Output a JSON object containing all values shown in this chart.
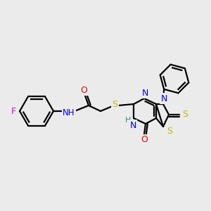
{
  "bg_color": "#ebebeb",
  "lw": 1.6,
  "atom_colors": {
    "N": "#0000ee",
    "O": "#ee0000",
    "S": "#bbbb00",
    "F": "#dd00dd",
    "H": "#408080",
    "C": "#000000"
  }
}
